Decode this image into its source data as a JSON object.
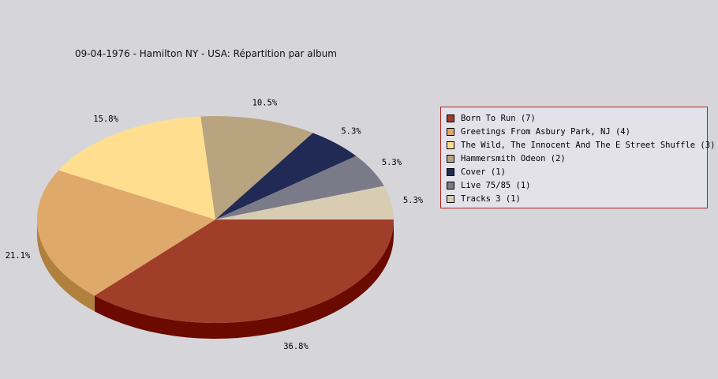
{
  "title": "09-04-1976 - Hamilton NY - USA:  Répartition par album",
  "chart_data": {
    "type": "pie",
    "title": "09-04-1976 - Hamilton NY - USA:  Répartition par album",
    "slices": [
      {
        "label": "Born To Run (7)",
        "value": 7,
        "percent": "36.8%",
        "color": "#a03e29",
        "side": "#6b0a00"
      },
      {
        "label": "Greetings From Asbury Park, NJ (4)",
        "value": 4,
        "percent": "21.1%",
        "color": "#e0a96c",
        "side": "#b0803f"
      },
      {
        "label": "The Wild, The Innocent And The E Street Shuffle (3)",
        "value": 3,
        "percent": "15.8%",
        "color": "#ffdf8f",
        "side": "#c8a860"
      },
      {
        "label": "Hammersmith Odeon  (2)",
        "value": 2,
        "percent": "10.5%",
        "color": "#b8a47e",
        "side": "#8a7855"
      },
      {
        "label": "Cover (1)",
        "value": 1,
        "percent": "5.3%",
        "color": "#202a55",
        "side": "#101830"
      },
      {
        "label": "Live 75/85 (1)",
        "value": 1,
        "percent": "5.3%",
        "color": "#7b7a88",
        "side": "#55545f"
      },
      {
        "label": "Tracks 3 (1)",
        "value": 1,
        "percent": "5.3%",
        "color": "#d8ccb3",
        "side": "#a8a090"
      }
    ],
    "legend_position": "right"
  }
}
